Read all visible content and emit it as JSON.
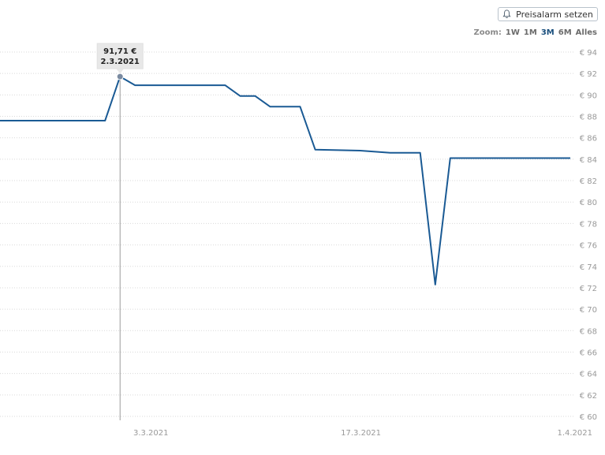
{
  "header": {
    "alarm_button_label": "Preisalarm setzen",
    "alarm_icon": "bell-icon"
  },
  "zoom": {
    "label": "Zoom:",
    "options": [
      "1W",
      "1M",
      "3M",
      "6M",
      "Alles"
    ],
    "active": "3M"
  },
  "tooltip": {
    "price": "91,71 €",
    "date": "2.3.2021"
  },
  "colors": {
    "line": "#1a5a94",
    "grid": "#d9d9d9",
    "crosshair": "#9a9a9a",
    "marker": "#7a8aa0"
  },
  "chart_data": {
    "type": "line",
    "title": "",
    "xlabel": "",
    "ylabel": "",
    "x_ticks": [
      "3.3.2021",
      "17.3.2021",
      "1.4.2021"
    ],
    "y_ticks": [
      "€ 60",
      "€ 62",
      "€ 64",
      "€ 66",
      "€ 68",
      "€ 70",
      "€ 72",
      "€ 74",
      "€ 76",
      "€ 78",
      "€ 80",
      "€ 82",
      "€ 84",
      "€ 86",
      "€ 88",
      "€ 90",
      "€ 92",
      "€ 94"
    ],
    "ylim": [
      60,
      94
    ],
    "xlim": [
      "2021-02-22",
      "2021-04-01"
    ],
    "grid": true,
    "series": [
      {
        "values": [
          {
            "x": "2021-02-22",
            "y": 87.6
          },
          {
            "x": "2021-03-01",
            "y": 87.6
          },
          {
            "x": "2021-03-02",
            "y": 91.71
          },
          {
            "x": "2021-03-03",
            "y": 90.9
          },
          {
            "x": "2021-03-09",
            "y": 90.9
          },
          {
            "x": "2021-03-10",
            "y": 89.9
          },
          {
            "x": "2021-03-11",
            "y": 89.9
          },
          {
            "x": "2021-03-12",
            "y": 88.9
          },
          {
            "x": "2021-03-14",
            "y": 88.9
          },
          {
            "x": "2021-03-15",
            "y": 84.9
          },
          {
            "x": "2021-03-18",
            "y": 84.8
          },
          {
            "x": "2021-03-20",
            "y": 84.6
          },
          {
            "x": "2021-03-22",
            "y": 84.6
          },
          {
            "x": "2021-03-23",
            "y": 72.3
          },
          {
            "x": "2021-03-24",
            "y": 84.1
          },
          {
            "x": "2021-04-01",
            "y": 84.1
          }
        ]
      }
    ]
  }
}
